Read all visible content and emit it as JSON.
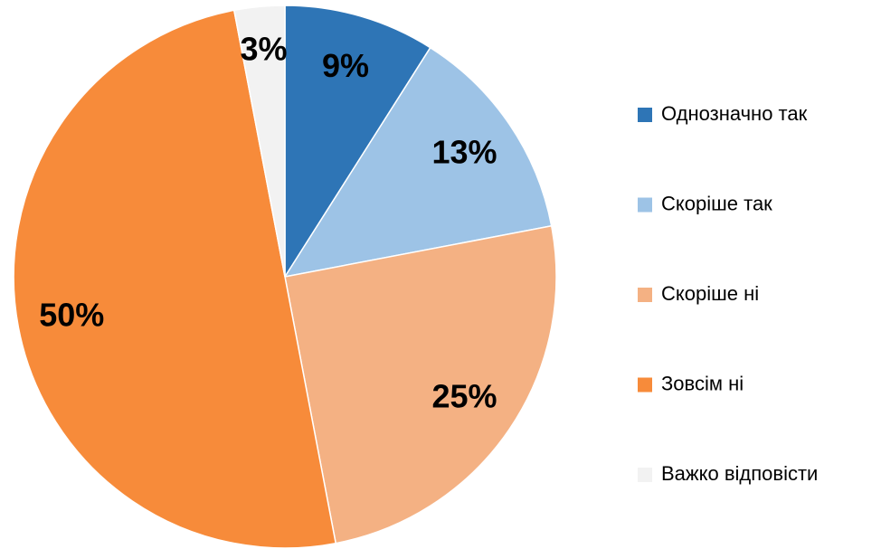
{
  "chart_data": {
    "type": "pie",
    "categories": [
      "Однозначно так",
      "Скоріше так",
      "Скоріше ні",
      "Зовсім ні",
      "Важко відповісти"
    ],
    "values": [
      9,
      13,
      25,
      50,
      3
    ],
    "value_labels": [
      "9%",
      "13%",
      "25%",
      "50%",
      "3%"
    ],
    "colors": [
      "#2e75b6",
      "#9dc3e6",
      "#f4b183",
      "#f78b3a",
      "#f2f2f2"
    ],
    "legend": "right"
  }
}
